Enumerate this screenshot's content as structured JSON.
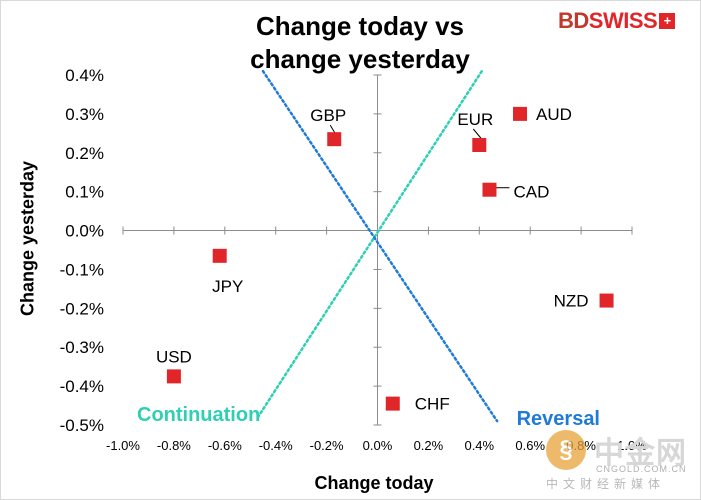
{
  "brand": {
    "logo_prefix": "BD",
    "logo_suffix": "SWISS",
    "logo_mark": "+"
  },
  "watermark": {
    "icon": "coin-icon",
    "name": "中金网",
    "site": "CNGOLD.COM.CN",
    "slogan": "中文财经新媒体"
  },
  "chart_data": {
    "type": "scatter",
    "title_line1": "Change today vs",
    "title_line2": "change yesterday",
    "xlabel": "Change today",
    "ylabel": "Change yesterday",
    "xlim": [
      -1.0,
      1.0
    ],
    "ylim": [
      -0.5,
      0.4
    ],
    "x_ticks": [
      -1.0,
      -0.8,
      -0.6,
      -0.4,
      -0.2,
      0.0,
      0.2,
      0.4,
      0.6,
      0.8,
      1.0
    ],
    "x_tick_labels": [
      "-1.0%",
      "-0.8%",
      "-0.6%",
      "-0.4%",
      "-0.2%",
      "0.0%",
      "0.2%",
      "0.4%",
      "0.6%",
      "0.8%",
      "1.0%"
    ],
    "y_ticks": [
      0.4,
      0.3,
      0.2,
      0.1,
      0.0,
      -0.1,
      -0.2,
      -0.3,
      -0.4,
      -0.5
    ],
    "y_tick_labels": [
      "0.4%",
      "0.3%",
      "0.2%",
      "0.1%",
      "0.0%",
      "-0.1%",
      "-0.2%",
      "-0.3%",
      "-0.4%",
      "-0.5%"
    ],
    "grid": false,
    "marker_color": "#e1262a",
    "points": [
      {
        "label": "AUD",
        "x": 0.56,
        "y": 0.3
      },
      {
        "label": "EUR",
        "x": 0.4,
        "y": 0.22
      },
      {
        "label": "GBP",
        "x": -0.17,
        "y": 0.235
      },
      {
        "label": "CAD",
        "x": 0.44,
        "y": 0.105
      },
      {
        "label": "JPY",
        "x": -0.62,
        "y": -0.065
      },
      {
        "label": "NZD",
        "x": 0.9,
        "y": -0.18
      },
      {
        "label": "USD",
        "x": -0.8,
        "y": -0.375
      },
      {
        "label": "CHF",
        "x": 0.06,
        "y": -0.445
      }
    ],
    "lines": [
      {
        "name": "Continuation",
        "color": "#2ecfb3",
        "from": [
          -0.47,
          -0.48
        ],
        "to": [
          0.41,
          0.41
        ]
      },
      {
        "name": "Reversal",
        "color": "#1f7ad8",
        "from": [
          -0.45,
          0.41
        ],
        "to": [
          0.47,
          -0.49
        ]
      }
    ]
  }
}
